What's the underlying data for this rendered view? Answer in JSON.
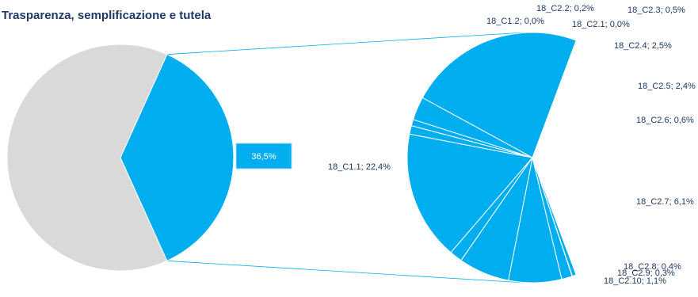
{
  "chart_data": {
    "type": "pie",
    "title": "Trasparenza, semplificazione e tutela",
    "colors": {
      "highlight": "#00aeef",
      "rest": "#d9d9d9",
      "connector": "#00aeef",
      "text": "#1f3864"
    },
    "main_pie": {
      "slices": [
        {
          "name": "",
          "value": 36.5,
          "highlighted": true
        },
        {
          "name": "",
          "value": 63.5,
          "highlighted": false
        }
      ],
      "highlight_label": "36,5%"
    },
    "detail_pie": {
      "slices": [
        {
          "name": "18_C1.1",
          "value": 22.4,
          "label": "18_C1.1; 22,4%"
        },
        {
          "name": "18_C1.2",
          "value": 0.0,
          "label": "18_C1.2; 0,0%"
        },
        {
          "name": "18_C2.2",
          "value": 0.2,
          "label": "18_C2.2; 0,2%"
        },
        {
          "name": "18_C2.1",
          "value": 0.0,
          "label": "18_C2.1; 0,0%"
        },
        {
          "name": "18_C2.3",
          "value": 0.5,
          "label": "18_C2.3; 0,5%"
        },
        {
          "name": "18_C2.4",
          "value": 2.5,
          "label": "18_C2.4; 2,5%"
        },
        {
          "name": "18_C2.5",
          "value": 2.4,
          "label": "18_C2.5; 2,4%"
        },
        {
          "name": "18_C2.6",
          "value": 0.6,
          "label": "18_C2.6; 0,6%"
        },
        {
          "name": "18_C2.7",
          "value": 6.1,
          "label": "18_C2.7; 6,1%"
        },
        {
          "name": "18_C2.8",
          "value": 0.4,
          "label": "18_C2.8; 0,4%"
        },
        {
          "name": "18_C2.9",
          "value": 0.3,
          "label": "18_C2.9; 0,3%"
        },
        {
          "name": "18_C2.10",
          "value": 1.1,
          "label": "18_C2.10; 1,1%"
        }
      ]
    }
  }
}
